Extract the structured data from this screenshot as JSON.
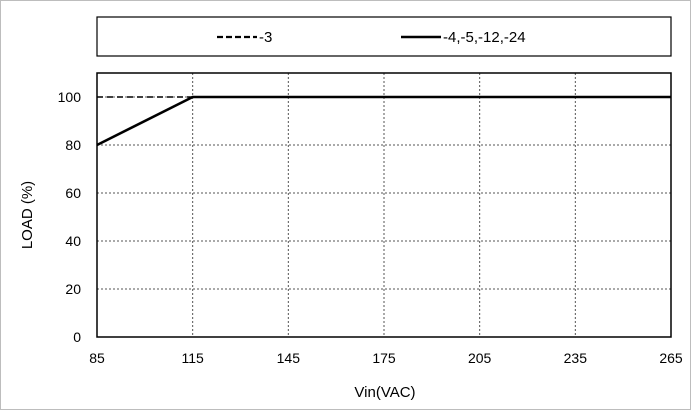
{
  "chart_data": {
    "type": "line",
    "xlabel": "Vin(VAC)",
    "ylabel": "LOAD (%)",
    "xlim": [
      85,
      265
    ],
    "ylim": [
      0,
      110
    ],
    "x_ticks": [
      85,
      115,
      145,
      175,
      205,
      235,
      265
    ],
    "y_ticks": [
      0,
      20,
      40,
      60,
      80,
      100
    ],
    "x_tick_labels": [
      "85",
      "115",
      "145",
      "175",
      "205",
      "235",
      "265"
    ],
    "y_tick_labels": [
      "0",
      "20",
      "40",
      "60",
      "80",
      "100"
    ],
    "grid": true,
    "legend_position": "top",
    "series": [
      {
        "name": "-3",
        "style": "dashed",
        "color": "#000000",
        "x": [
          85,
          115,
          265
        ],
        "y": [
          100,
          100,
          100
        ]
      },
      {
        "name": "-4,-5,-12,-24",
        "style": "solid",
        "color": "#000000",
        "x": [
          85,
          115,
          265
        ],
        "y": [
          80,
          100,
          100
        ]
      }
    ]
  }
}
